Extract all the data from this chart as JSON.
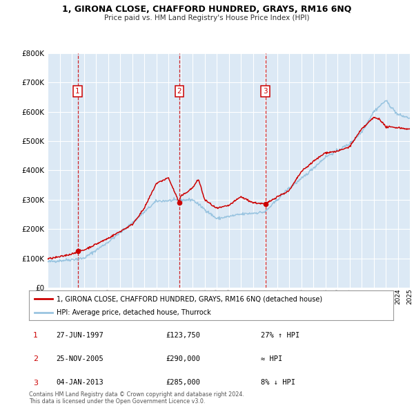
{
  "title": "1, GIRONA CLOSE, CHAFFORD HUNDRED, GRAYS, RM16 6NQ",
  "subtitle": "Price paid vs. HM Land Registry's House Price Index (HPI)",
  "ylim": [
    0,
    800000
  ],
  "yticks": [
    0,
    100000,
    200000,
    300000,
    400000,
    500000,
    600000,
    700000,
    800000
  ],
  "ytick_labels": [
    "£0",
    "£100K",
    "£200K",
    "£300K",
    "£400K",
    "£500K",
    "£600K",
    "£700K",
    "£800K"
  ],
  "bg_color": "#dce9f5",
  "fig_bg_color": "#ffffff",
  "line1_color": "#cc0000",
  "line2_color": "#99c4e0",
  "sale_color": "#cc0000",
  "vline_color": "#cc0000",
  "transactions": [
    {
      "num": 1,
      "date_str": "27-JUN-1997",
      "price": 123750,
      "year": 1997.49,
      "label": "27% ↑ HPI"
    },
    {
      "num": 2,
      "date_str": "25-NOV-2005",
      "price": 290000,
      "year": 2005.9,
      "label": "≈ HPI"
    },
    {
      "num": 3,
      "date_str": "04-JAN-2013",
      "price": 285000,
      "year": 2013.03,
      "label": "8% ↓ HPI"
    }
  ],
  "legend_line1": "1, GIRONA CLOSE, CHAFFORD HUNDRED, GRAYS, RM16 6NQ (detached house)",
  "legend_line2": "HPI: Average price, detached house, Thurrock",
  "table_rows": [
    {
      "num": 1,
      "date": "27-JUN-1997",
      "price": "£123,750",
      "label": "27% ↑ HPI"
    },
    {
      "num": 2,
      "date": "25-NOV-2005",
      "price": "£290,000",
      "label": "≈ HPI"
    },
    {
      "num": 3,
      "date": "04-JAN-2013",
      "price": "£285,000",
      "label": "8% ↓ HPI"
    }
  ],
  "footer": "Contains HM Land Registry data © Crown copyright and database right 2024.\nThis data is licensed under the Open Government Licence v3.0.",
  "xmin": 1995,
  "xmax": 2025
}
